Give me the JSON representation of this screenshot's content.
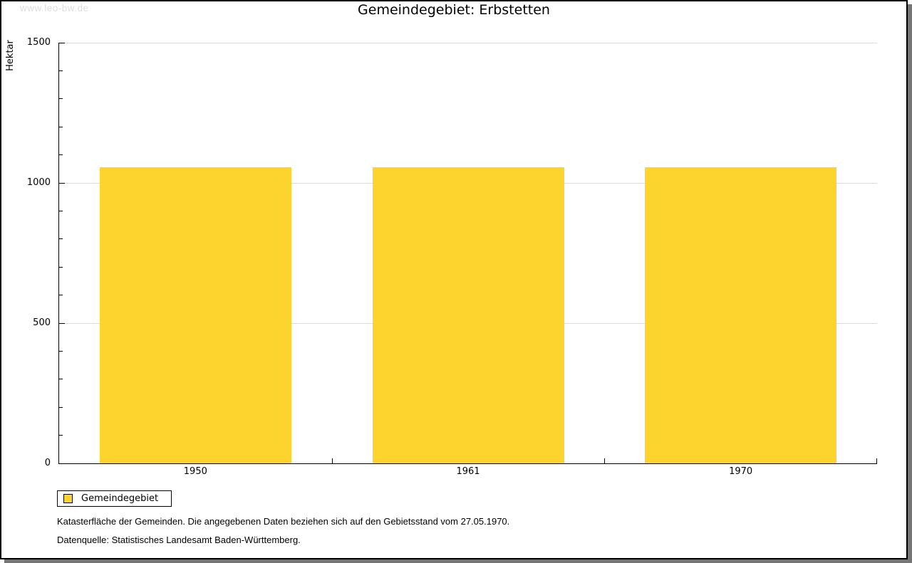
{
  "watermark": "www.leo-bw.de",
  "title": "Gemeindegebiet: Erbstetten",
  "chart_data": {
    "type": "bar",
    "title": "Gemeindegebiet: Erbstetten",
    "categories": [
      "1950",
      "1961",
      "1970"
    ],
    "series": [
      {
        "name": "Gemeindegebiet",
        "values": [
          1056,
          1056,
          1056
        ]
      }
    ],
    "xlabel": "",
    "ylabel": "Hektar",
    "ylim": [
      0,
      1500
    ],
    "yticks_major": [
      0,
      500,
      1000,
      1500
    ],
    "ytick_minor_step": 100,
    "grid": "horizontal-major",
    "legend_position": "bottom-left",
    "bar_color": "#FCD42D"
  },
  "legend": {
    "items": [
      {
        "label": "Gemeindegebiet",
        "color": "#FCD42D"
      }
    ]
  },
  "footer": {
    "line1": "Katasterfläche der Gemeinden. Die angegebenen Daten beziehen sich auf den Gebietsstand vom 27.05.1970.",
    "line2": "Datenquelle: Statistisches Landesamt Baden-Württemberg."
  },
  "colors": {
    "bar": "#FCD42D",
    "grid": "#DCDCDC",
    "axis": "#000000",
    "watermark": "#DEDEDE",
    "frame_shadow": "#767676"
  }
}
